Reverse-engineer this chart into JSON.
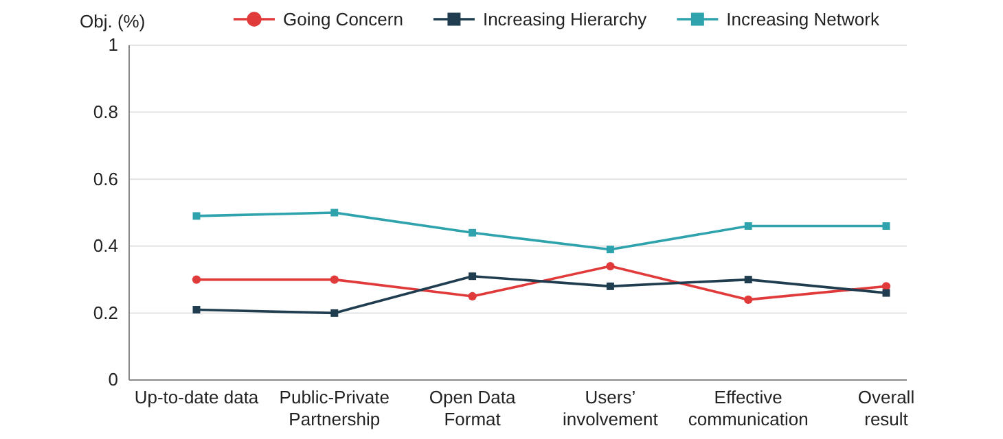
{
  "chart_data": {
    "type": "line",
    "ylabel": "Obj. (%)",
    "categories": [
      "Up-to-date data",
      "Public-Private\nPartnership",
      "Open Data\nFormat",
      "Users’\ninvolvement",
      "Effective\ncommunication",
      "Overall\nresult"
    ],
    "series": [
      {
        "name": "Going Concern",
        "color": "#e03a3a",
        "marker": "circle",
        "values": [
          0.3,
          0.3,
          0.25,
          0.34,
          0.24,
          0.28
        ]
      },
      {
        "name": "Increasing Hierarchy",
        "color": "#1f3d4f",
        "marker": "square",
        "values": [
          0.21,
          0.2,
          0.31,
          0.28,
          0.3,
          0.26
        ]
      },
      {
        "name": "Increasing Network",
        "color": "#2fa3ad",
        "marker": "square",
        "values": [
          0.49,
          0.5,
          0.44,
          0.39,
          0.46,
          0.46
        ]
      }
    ],
    "ylim": [
      0,
      1
    ],
    "yticks": [
      0,
      0.2,
      0.4,
      0.6,
      0.8,
      1
    ],
    "grid": "y",
    "legend": "top"
  }
}
